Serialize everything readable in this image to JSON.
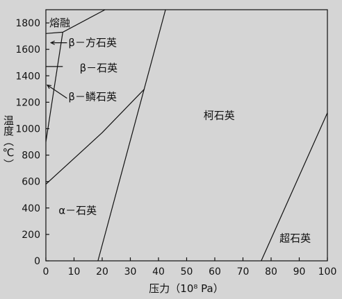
{
  "chart_data": {
    "type": "line",
    "title": "",
    "xlabel": "压力（10⁸ Pa）",
    "ylabel": "温度（℃）",
    "xlim": [
      0,
      100
    ],
    "ylim": [
      0,
      1900
    ],
    "x_ticks": [
      0,
      10,
      20,
      30,
      40,
      50,
      60,
      70,
      80,
      90,
      100
    ],
    "y_ticks": [
      0,
      200,
      400,
      600,
      800,
      1000,
      1200,
      1400,
      1600,
      1800
    ],
    "grid": false,
    "series": [
      {
        "x": [
          0,
          6,
          21
        ],
        "y": [
          1720,
          1730,
          1900
        ]
      },
      {
        "x": [
          0,
          6
        ],
        "y": [
          900,
          1730
        ]
      },
      {
        "x": [
          0,
          6
        ],
        "y": [
          1470,
          1470
        ]
      },
      {
        "x": [
          0,
          20,
          35
        ],
        "y": [
          580,
          970,
          1300
        ]
      },
      {
        "x": [
          18.5,
          42.5
        ],
        "y": [
          0,
          1900
        ]
      },
      {
        "x": [
          76.5,
          100
        ],
        "y": [
          0,
          1120
        ]
      }
    ],
    "annotations": [
      {
        "text": "熔融",
        "x": 0.5,
        "y": 1800
      },
      {
        "text": "β－方石英",
        "x": 8,
        "y": 1650
      },
      {
        "text": "β－石英",
        "x": 12,
        "y": 1460
      },
      {
        "text": "β－鳞石英",
        "x": 8,
        "y": 1240
      },
      {
        "text": "柯石英",
        "x": 56,
        "y": 1100
      },
      {
        "text": "α－石英",
        "x": 4.5,
        "y": 380
      },
      {
        "text": "超石英",
        "x": 83,
        "y": 170
      }
    ]
  }
}
